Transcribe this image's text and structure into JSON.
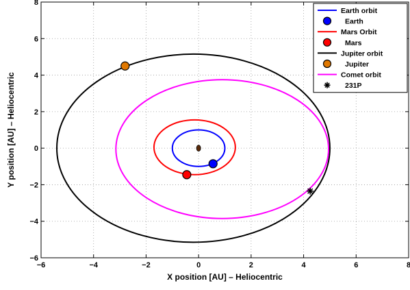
{
  "chart_data": {
    "type": "scatter",
    "xlabel": "X position [AU] – Heliocentric",
    "ylabel": "Y position [AU] – Heliocentric",
    "xlim": [
      -6,
      8
    ],
    "ylim": [
      -6,
      8
    ],
    "xticks": [
      -6,
      -4,
      -2,
      0,
      2,
      4,
      6,
      8
    ],
    "yticks": [
      -6,
      -4,
      -2,
      0,
      2,
      4,
      6,
      8
    ],
    "xtick_labels": [
      "−6",
      "−4",
      "−2",
      "0",
      "2",
      "4",
      "6",
      "8"
    ],
    "ytick_labels": [
      "−6",
      "−4",
      "−2",
      "0",
      "2",
      "4",
      "6",
      "8"
    ],
    "grid": true,
    "legend_position": "top-right",
    "sun": {
      "x": 0,
      "y": 0,
      "color": "#5a2a0a"
    },
    "series": [
      {
        "name": "Earth orbit",
        "kind": "orbit",
        "cx": 0,
        "cy": 0,
        "rx": 1.0,
        "ry": 1.0,
        "color": "#0000ff"
      },
      {
        "name": "Earth",
        "kind": "body",
        "x": 0.55,
        "y": -0.85,
        "color": "#0000ff"
      },
      {
        "name": "Mars Orbit",
        "kind": "orbit",
        "cx": -0.15,
        "cy": 0.05,
        "rx": 1.55,
        "ry": 1.5,
        "color": "#ff0000"
      },
      {
        "name": "Mars",
        "kind": "body",
        "x": -0.45,
        "y": -1.45,
        "color": "#ff0000"
      },
      {
        "name": "Jupiter orbit",
        "kind": "orbit",
        "cx": -0.2,
        "cy": 0.0,
        "rx": 5.2,
        "ry": 5.15,
        "color": "#000000"
      },
      {
        "name": "Jupiter",
        "kind": "body",
        "x": -2.8,
        "y": 4.5,
        "color": "#e07800"
      },
      {
        "name": "Comet orbit",
        "kind": "orbit",
        "cx": 0.9,
        "cy": -0.05,
        "rx": 4.05,
        "ry": 3.8,
        "color": "#ff00ff"
      },
      {
        "name": "231P",
        "kind": "marker",
        "x": 4.25,
        "y": -2.35,
        "color": "#000000"
      }
    ]
  }
}
